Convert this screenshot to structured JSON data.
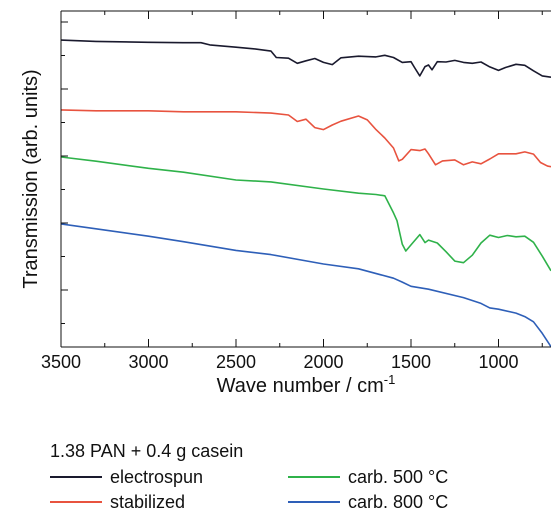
{
  "chart_data": {
    "type": "line",
    "xlabel": "Wave number / cm",
    "xlabel_sup": "-1",
    "ylabel": "Transmission (arb. units)",
    "xlim": [
      3500,
      700
    ],
    "x_ticks": [
      "3500",
      "3000",
      "2500",
      "2000",
      "1500",
      "1000"
    ],
    "grid": false,
    "legend": {
      "title": "1.38 PAN + 0.4 g casein",
      "placement": "bottom"
    },
    "series": [
      {
        "name": "electrospun",
        "color": "#1a1a2e",
        "points": [
          [
            3500,
            91
          ],
          [
            3300,
            90.6
          ],
          [
            3000,
            90.3
          ],
          [
            2800,
            90.2
          ],
          [
            2700,
            90.2
          ],
          [
            2650,
            89.5
          ],
          [
            2500,
            88.8
          ],
          [
            2400,
            88.3
          ],
          [
            2300,
            87.6
          ],
          [
            2270,
            85.6
          ],
          [
            2200,
            85.4
          ],
          [
            2150,
            83.8
          ],
          [
            2100,
            84.6
          ],
          [
            2050,
            85.3
          ],
          [
            2000,
            84.1
          ],
          [
            1950,
            83.4
          ],
          [
            1900,
            85.5
          ],
          [
            1800,
            86
          ],
          [
            1700,
            85.8
          ],
          [
            1650,
            86.3
          ],
          [
            1600,
            85.6
          ],
          [
            1550,
            84.1
          ],
          [
            1500,
            84.3
          ],
          [
            1480,
            82.5
          ],
          [
            1450,
            79.9
          ],
          [
            1420,
            82.8
          ],
          [
            1400,
            83.3
          ],
          [
            1380,
            81.8
          ],
          [
            1350,
            84.3
          ],
          [
            1300,
            84.2
          ],
          [
            1250,
            84.7
          ],
          [
            1200,
            84.1
          ],
          [
            1150,
            83.8
          ],
          [
            1100,
            84.2
          ],
          [
            1050,
            82.7
          ],
          [
            1000,
            81.6
          ],
          [
            960,
            82.5
          ],
          [
            900,
            83.5
          ],
          [
            850,
            83.2
          ],
          [
            800,
            81.5
          ],
          [
            750,
            79.9
          ],
          [
            700,
            79.5
          ]
        ]
      },
      {
        "name": "stabilized",
        "color": "#e8533f",
        "points": [
          [
            3500,
            69.4
          ],
          [
            3300,
            69.1
          ],
          [
            3000,
            69.1
          ],
          [
            2800,
            68.8
          ],
          [
            2500,
            68.8
          ],
          [
            2300,
            68.4
          ],
          [
            2200,
            67.8
          ],
          [
            2150,
            65.8
          ],
          [
            2100,
            66.5
          ],
          [
            2050,
            63.9
          ],
          [
            2000,
            63.3
          ],
          [
            1950,
            64.7
          ],
          [
            1900,
            65.9
          ],
          [
            1800,
            67.5
          ],
          [
            1750,
            66.3
          ],
          [
            1700,
            63.3
          ],
          [
            1650,
            60.7
          ],
          [
            1600,
            57.6
          ],
          [
            1570,
            53.6
          ],
          [
            1550,
            54.1
          ],
          [
            1500,
            57.1
          ],
          [
            1450,
            56.8
          ],
          [
            1420,
            57.3
          ],
          [
            1400,
            55.8
          ],
          [
            1360,
            52.4
          ],
          [
            1320,
            53.6
          ],
          [
            1250,
            53.9
          ],
          [
            1200,
            52.4
          ],
          [
            1150,
            53.3
          ],
          [
            1100,
            52.7
          ],
          [
            1050,
            54.2
          ],
          [
            1000,
            55.8
          ],
          [
            900,
            55.8
          ],
          [
            850,
            56.4
          ],
          [
            800,
            55.7
          ],
          [
            760,
            53.1
          ],
          [
            720,
            52
          ],
          [
            700,
            51.8
          ]
        ]
      },
      {
        "name": "carb. 500 °C",
        "color": "#2fb24a",
        "points": [
          [
            3500,
            54.8
          ],
          [
            3300,
            53.5
          ],
          [
            3000,
            51.3
          ],
          [
            2800,
            50.1
          ],
          [
            2500,
            47.7
          ],
          [
            2300,
            47.1
          ],
          [
            2000,
            44.9
          ],
          [
            1800,
            43.6
          ],
          [
            1700,
            43.2
          ],
          [
            1650,
            42.8
          ],
          [
            1600,
            37.5
          ],
          [
            1580,
            35.1
          ],
          [
            1550,
            27.8
          ],
          [
            1530,
            25.7
          ],
          [
            1500,
            27.6
          ],
          [
            1450,
            30.8
          ],
          [
            1420,
            28.3
          ],
          [
            1400,
            29.1
          ],
          [
            1350,
            28.2
          ],
          [
            1300,
            25.5
          ],
          [
            1250,
            22.6
          ],
          [
            1200,
            22.1
          ],
          [
            1150,
            24.4
          ],
          [
            1100,
            28.2
          ],
          [
            1050,
            30.6
          ],
          [
            1000,
            29.9
          ],
          [
            950,
            30.5
          ],
          [
            900,
            30.1
          ],
          [
            850,
            30.3
          ],
          [
            800,
            28.4
          ],
          [
            750,
            24.1
          ],
          [
            700,
            19.6
          ]
        ]
      },
      {
        "name": "carb. 800 °C",
        "color": "#2e5fb8",
        "points": [
          [
            3500,
            34.1
          ],
          [
            3300,
            32.6
          ],
          [
            3000,
            30.3
          ],
          [
            2800,
            28.6
          ],
          [
            2500,
            25.9
          ],
          [
            2300,
            24.6
          ],
          [
            2000,
            21.7
          ],
          [
            1800,
            20.2
          ],
          [
            1600,
            17.3
          ],
          [
            1550,
            16.1
          ],
          [
            1500,
            14.8
          ],
          [
            1400,
            13.9
          ],
          [
            1200,
            11.3
          ],
          [
            1100,
            9.5
          ],
          [
            1050,
            8.1
          ],
          [
            1000,
            7.7
          ],
          [
            900,
            6.5
          ],
          [
            850,
            5.4
          ],
          [
            800,
            3.8
          ],
          [
            750,
            0.2
          ],
          [
            700,
            -3.9
          ]
        ]
      }
    ]
  }
}
